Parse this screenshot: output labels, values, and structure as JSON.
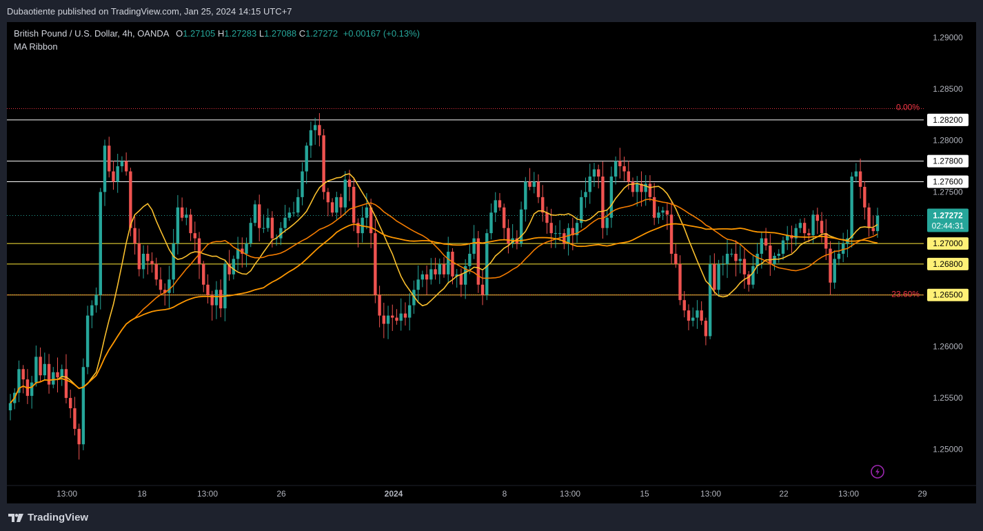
{
  "header": {
    "publisher_line": "Dubaotiente published on TradingView.com, Jan 25, 2024 14:15 UTC+7"
  },
  "legend": {
    "symbol": "British Pound / U.S. Dollar, 4h, OANDA",
    "open_label": "O",
    "open": "1.27105",
    "high_label": "H",
    "high": "1.27283",
    "low_label": "L",
    "low": "1.27088",
    "close_label": "C",
    "close": "1.27272",
    "change": "+0.00167 (+0.13%)",
    "indicator": "MA Ribbon"
  },
  "footer": {
    "brand": "TradingView"
  },
  "colors": {
    "up": "#26a69a",
    "down": "#ef5350",
    "background": "#000000",
    "ma_fast": "#fbc02d",
    "ma_slow": "#ff9800",
    "ma_mid": "#f57c00",
    "level_white": "#ffffff",
    "level_yellow": "#ffeb3b",
    "fib": "#f23645"
  },
  "chart_data": {
    "type": "candlestick",
    "symbol": "GBPUSD",
    "timeframe": "4h",
    "ylim": [
      1.2465,
      1.2915
    ],
    "price_ticks": [
      "1.29000",
      "1.28500",
      "1.28000",
      "1.27500",
      "1.26000",
      "1.25500",
      "1.25000"
    ],
    "time_ticks": [
      "13:00",
      "18",
      "13:00",
      "26",
      "2024",
      "8",
      "13:00",
      "15",
      "13:00",
      "22",
      "13:00",
      "29"
    ],
    "horizontal_levels": [
      {
        "price": 1.282,
        "label": "1.28200",
        "style": "white"
      },
      {
        "price": 1.278,
        "label": "1.27800",
        "style": "white"
      },
      {
        "price": 1.276,
        "label": "1.27600",
        "style": "white"
      },
      {
        "price": 1.27,
        "label": "1.27000",
        "style": "yellow"
      },
      {
        "price": 1.268,
        "label": "1.26800",
        "style": "yellow"
      },
      {
        "price": 1.265,
        "label": "1.26500",
        "style": "yellow"
      }
    ],
    "fib_levels": [
      {
        "price": 1.2831,
        "label": "0.00%"
      },
      {
        "price": 1.265,
        "label": "23.60%"
      }
    ],
    "last_price": {
      "value": "1.27272",
      "countdown": "02:44:31",
      "price": 1.27272
    },
    "closes": [
      1.2545,
      1.2555,
      1.2578,
      1.2568,
      1.2552,
      1.2565,
      1.259,
      1.2572,
      1.2583,
      1.2563,
      1.2575,
      1.257,
      1.2578,
      1.255,
      1.254,
      1.252,
      1.2505,
      1.258,
      1.263,
      1.264,
      1.265,
      1.275,
      1.2795,
      1.277,
      1.276,
      1.2775,
      1.278,
      1.277,
      1.2715,
      1.27,
      1.2675,
      1.269,
      1.2683,
      1.268,
      1.2665,
      1.2655,
      1.2652,
      1.2665,
      1.27,
      1.2735,
      1.2725,
      1.2728,
      1.271,
      1.2705,
      1.268,
      1.266,
      1.265,
      1.264,
      1.2655,
      1.2637,
      1.268,
      1.267,
      1.2685,
      1.2695,
      1.269,
      1.27,
      1.272,
      1.2738,
      1.2715,
      1.2715,
      1.2725,
      1.2705,
      1.2705,
      1.2715,
      1.2725,
      1.273,
      1.273,
      1.2745,
      1.277,
      1.2795,
      1.281,
      1.2815,
      1.2805,
      1.275,
      1.274,
      1.273,
      1.2745,
      1.2735,
      1.2762,
      1.2755,
      1.272,
      1.271,
      1.2725,
      1.2735,
      1.271,
      1.265,
      1.263,
      1.2622,
      1.263,
      1.2628,
      1.2625,
      1.2632,
      1.2628,
      1.264,
      1.2655,
      1.2665,
      1.267,
      1.2665,
      1.2675,
      1.267,
      1.268,
      1.267,
      1.2692,
      1.2668,
      1.267,
      1.266,
      1.2678,
      1.269,
      1.2705,
      1.266,
      1.265,
      1.271,
      1.273,
      1.2742,
      1.2735,
      1.2715,
      1.27,
      1.2705,
      1.27,
      1.2733,
      1.276,
      1.2755,
      1.276,
      1.2745,
      1.273,
      1.272,
      1.271,
      1.271,
      1.271,
      1.27,
      1.2715,
      1.2708,
      1.272,
      1.2745,
      1.275,
      1.2765,
      1.2772,
      1.2765,
      1.2715,
      1.2725,
      1.2765,
      1.278,
      1.2775,
      1.277,
      1.276,
      1.275,
      1.2758,
      1.275,
      1.2758,
      1.2745,
      1.2725,
      1.273,
      1.2732,
      1.2728,
      1.269,
      1.268,
      1.2645,
      1.2635,
      1.2625,
      1.2628,
      1.2635,
      1.2625,
      1.261,
      1.268,
      1.2655,
      1.268,
      1.268,
      1.269,
      1.269,
      1.2683,
      1.2685,
      1.267,
      1.266,
      1.2678,
      1.269,
      1.2705,
      1.2698,
      1.268,
      1.2688,
      1.269,
      1.2703,
      1.2708,
      1.2705,
      1.2715,
      1.272,
      1.271,
      1.2708,
      1.2728,
      1.2722,
      1.271,
      1.2695,
      1.2662,
      1.2685,
      1.269,
      1.27,
      1.2705,
      1.2765,
      1.277,
      1.2755,
      1.2735,
      1.2715,
      1.2712,
      1.2727
    ]
  }
}
